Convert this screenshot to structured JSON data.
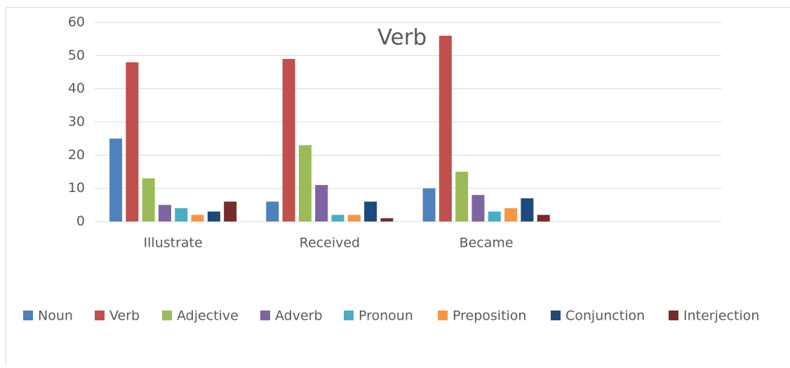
{
  "chart_data": {
    "type": "bar",
    "title": "Verb",
    "categories": [
      "Illustrate",
      "Received",
      "Became",
      null
    ],
    "series": [
      {
        "name": "Noun",
        "color": "#4f81bd",
        "values": [
          25,
          6,
          10,
          null
        ]
      },
      {
        "name": "Verb",
        "color": "#c0504d",
        "values": [
          48,
          49,
          56,
          null
        ]
      },
      {
        "name": "Adjective",
        "color": "#9bbb59",
        "values": [
          13,
          23,
          15,
          null
        ]
      },
      {
        "name": "Adverb",
        "color": "#8064a2",
        "values": [
          5,
          11,
          8,
          null
        ]
      },
      {
        "name": "Pronoun",
        "color": "#4bacc6",
        "values": [
          4,
          2,
          3,
          null
        ]
      },
      {
        "name": "Preposition",
        "color": "#f79646",
        "values": [
          2,
          2,
          4,
          null
        ]
      },
      {
        "name": "Conjunction",
        "color": "#1f497d",
        "values": [
          3,
          6,
          7,
          null
        ]
      },
      {
        "name": "Interjection",
        "color": "#772c2a",
        "values": [
          6,
          1,
          2,
          null
        ]
      }
    ],
    "ylim": [
      0,
      60
    ],
    "yticks": [
      0,
      10,
      20,
      30,
      40,
      50,
      60
    ],
    "grid": true,
    "legend": "bottom"
  }
}
